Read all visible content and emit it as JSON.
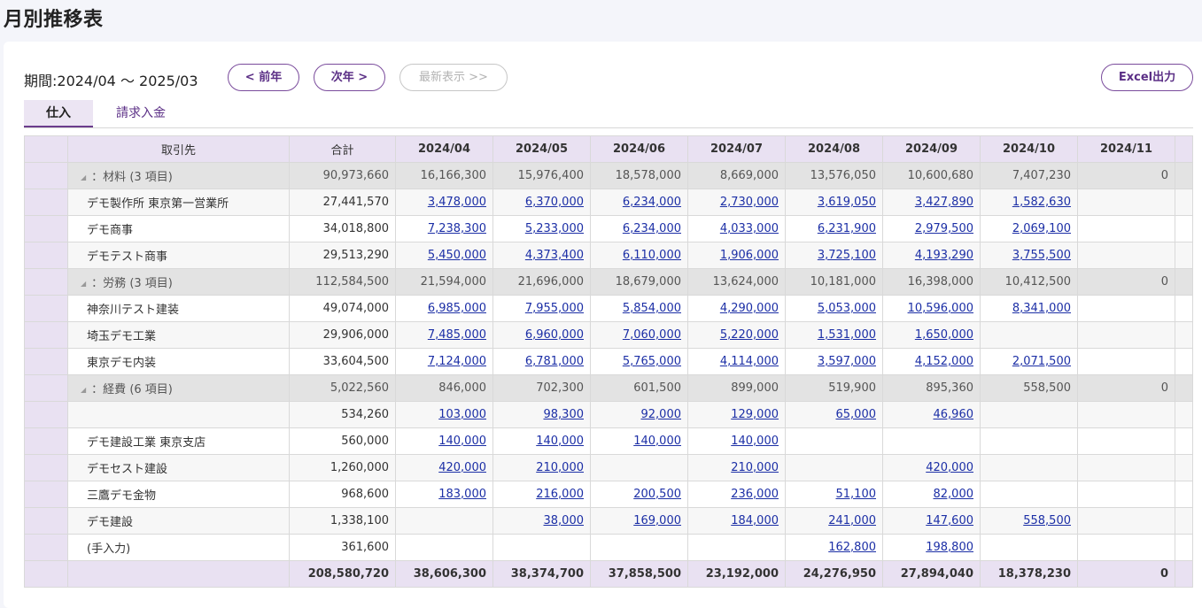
{
  "title": "月別推移表",
  "period": "期間:2024/04 ～ 2025/03",
  "buttons": {
    "prev": "< 前年",
    "next": "次年 >",
    "latest": "最新表示 >>",
    "excel": "Excel出力"
  },
  "tabs": [
    {
      "label": "仕入",
      "active": true
    },
    {
      "label": "請求入金",
      "active": false
    }
  ],
  "table": {
    "headers": {
      "name": "取引先",
      "total": "合計",
      "months": [
        "2024/04",
        "2024/05",
        "2024/06",
        "2024/07",
        "2024/08",
        "2024/09",
        "2024/10",
        "2024/11"
      ]
    },
    "rows": [
      {
        "type": "category",
        "name": "：材料",
        "count": "(3 項目)",
        "total": "90,973,660",
        "values": [
          "16,166,300",
          "15,976,400",
          "18,578,000",
          "8,669,000",
          "13,576,050",
          "10,600,680",
          "7,407,230",
          "0"
        ]
      },
      {
        "type": "item",
        "name": "デモ製作所 東京第一営業所",
        "total": "27,441,570",
        "values": [
          "3,478,000",
          "6,370,000",
          "6,234,000",
          "2,730,000",
          "3,619,050",
          "3,427,890",
          "1,582,630",
          ""
        ]
      },
      {
        "type": "item",
        "name": "デモ商事",
        "total": "34,018,800",
        "values": [
          "7,238,300",
          "5,233,000",
          "6,234,000",
          "4,033,000",
          "6,231,900",
          "2,979,500",
          "2,069,100",
          ""
        ]
      },
      {
        "type": "item",
        "name": "デモテスト商事",
        "total": "29,513,290",
        "values": [
          "5,450,000",
          "4,373,400",
          "6,110,000",
          "1,906,000",
          "3,725,100",
          "4,193,290",
          "3,755,500",
          ""
        ]
      },
      {
        "type": "category",
        "name": "：労務",
        "count": "(3 項目)",
        "total": "112,584,500",
        "values": [
          "21,594,000",
          "21,696,000",
          "18,679,000",
          "13,624,000",
          "10,181,000",
          "16,398,000",
          "10,412,500",
          "0"
        ]
      },
      {
        "type": "item",
        "name": "神奈川テスト建装",
        "total": "49,074,000",
        "values": [
          "6,985,000",
          "7,955,000",
          "5,854,000",
          "4,290,000",
          "5,053,000",
          "10,596,000",
          "8,341,000",
          ""
        ]
      },
      {
        "type": "item",
        "name": "埼玉デモ工業",
        "total": "29,906,000",
        "values": [
          "7,485,000",
          "6,960,000",
          "7,060,000",
          "5,220,000",
          "1,531,000",
          "1,650,000",
          "",
          ""
        ]
      },
      {
        "type": "item",
        "name": "東京デモ内装",
        "total": "33,604,500",
        "values": [
          "7,124,000",
          "6,781,000",
          "5,765,000",
          "4,114,000",
          "3,597,000",
          "4,152,000",
          "2,071,500",
          ""
        ]
      },
      {
        "type": "category",
        "name": "：経費",
        "count": "(6 項目)",
        "total": "5,022,560",
        "values": [
          "846,000",
          "702,300",
          "601,500",
          "899,000",
          "519,900",
          "895,360",
          "558,500",
          "0"
        ]
      },
      {
        "type": "item",
        "name": "",
        "total": "534,260",
        "values": [
          "103,000",
          "98,300",
          "92,000",
          "129,000",
          "65,000",
          "46,960",
          "",
          ""
        ]
      },
      {
        "type": "item",
        "name": "デモ建設工業 東京支店",
        "total": "560,000",
        "values": [
          "140,000",
          "140,000",
          "140,000",
          "140,000",
          "",
          "",
          "",
          ""
        ]
      },
      {
        "type": "item",
        "name": "デモセスト建設",
        "total": "1,260,000",
        "values": [
          "420,000",
          "210,000",
          "",
          "210,000",
          "",
          "420,000",
          "",
          ""
        ]
      },
      {
        "type": "item",
        "name": "三鷹デモ金物",
        "total": "968,600",
        "values": [
          "183,000",
          "216,000",
          "200,500",
          "236,000",
          "51,100",
          "82,000",
          "",
          ""
        ]
      },
      {
        "type": "item",
        "name": "デモ建設",
        "total": "1,338,100",
        "values": [
          "",
          "38,000",
          "169,000",
          "184,000",
          "241,000",
          "147,600",
          "558,500",
          ""
        ]
      },
      {
        "type": "item",
        "name": "(手入力)",
        "total": "361,600",
        "values": [
          "",
          "",
          "",
          "",
          "162,800",
          "198,800",
          "",
          ""
        ]
      }
    ],
    "summary": {
      "total": "208,580,720",
      "values": [
        "38,606,300",
        "38,374,700",
        "37,858,500",
        "23,192,000",
        "24,276,950",
        "27,894,040",
        "18,378,230",
        "0"
      ]
    }
  },
  "icons": {
    "collapse": "triangle-collapse-icon"
  },
  "colors": {
    "accent": "#6b3d8c",
    "header_bg": "#e9e1f2",
    "link": "#1c2fa6",
    "category_bg": "#e3e3e3"
  }
}
